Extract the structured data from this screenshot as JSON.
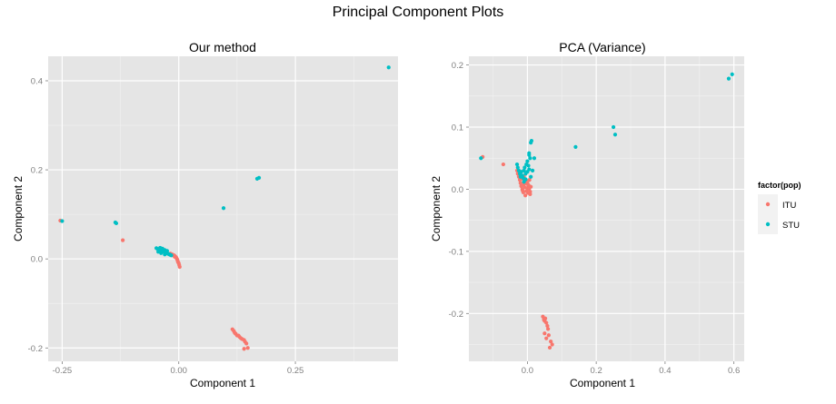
{
  "title": "Principal Component Plots",
  "colors": {
    "ITU": "#F8766D",
    "STU": "#00BFC4",
    "panel_bg": "#E5E5E5",
    "grid": "#FFFFFF"
  },
  "legend": {
    "title": "factor(pop)",
    "entries": [
      {
        "label": "ITU",
        "color": "#F8766D"
      },
      {
        "label": "STU",
        "color": "#00BFC4"
      }
    ]
  },
  "chart_data": [
    {
      "type": "scatter",
      "title": "Our method",
      "xlabel": "Component 1",
      "ylabel": "Component 2",
      "xlim": [
        -0.28,
        0.47
      ],
      "ylim": [
        -0.23,
        0.455
      ],
      "xticks": [
        -0.25,
        0.0,
        0.25
      ],
      "xtick_labels": [
        "-0.25",
        "0.00",
        "0.25"
      ],
      "yticks": [
        -0.2,
        0.0,
        0.2,
        0.4
      ],
      "ytick_labels": [
        "-0.2",
        "0.0",
        "0.2",
        "0.4"
      ],
      "grid": true,
      "series": [
        {
          "name": "ITU",
          "x": [
            -0.254,
            -0.12,
            -0.018,
            -0.014,
            -0.01,
            -0.008,
            -0.006,
            -0.004,
            -0.003,
            -0.002,
            -0.001,
            0.0,
            0.001,
            0.002,
            -0.005,
            -0.009,
            0.115,
            0.118,
            0.12,
            0.122,
            0.125,
            0.128,
            0.13,
            0.133,
            0.136,
            0.14,
            0.142,
            0.145,
            0.148,
            0.14
          ],
          "y": [
            0.086,
            0.042,
            0.012,
            0.01,
            0.008,
            0.006,
            0.004,
            0.0,
            -0.002,
            -0.006,
            -0.008,
            -0.01,
            -0.014,
            -0.018,
            0.002,
            0.005,
            -0.158,
            -0.162,
            -0.166,
            -0.168,
            -0.172,
            -0.172,
            -0.175,
            -0.178,
            -0.18,
            -0.182,
            -0.186,
            -0.19,
            -0.2,
            -0.202
          ]
        },
        {
          "name": "STU",
          "x": [
            -0.25,
            -0.136,
            -0.134,
            -0.048,
            -0.045,
            -0.043,
            -0.04,
            -0.038,
            -0.036,
            -0.034,
            -0.032,
            -0.03,
            -0.028,
            -0.026,
            -0.024,
            -0.022,
            -0.02,
            -0.018,
            -0.016,
            -0.044,
            -0.04,
            -0.035,
            -0.03,
            -0.025,
            -0.038,
            -0.03,
            0.096,
            0.168,
            0.172,
            0.45
          ],
          "y": [
            0.085,
            0.082,
            0.08,
            0.024,
            0.022,
            0.021,
            0.02,
            0.019,
            0.018,
            0.017,
            0.016,
            0.015,
            0.014,
            0.013,
            0.012,
            0.011,
            0.01,
            0.009,
            0.008,
            0.016,
            0.025,
            0.023,
            0.02,
            0.018,
            0.013,
            0.01,
            0.114,
            0.18,
            0.182,
            0.43
          ]
        }
      ]
    },
    {
      "type": "scatter",
      "title": "PCA (Variance)",
      "xlabel": "Component 1",
      "ylabel": "Component 2",
      "xlim": [
        -0.17,
        0.63
      ],
      "ylim": [
        -0.277,
        0.214
      ],
      "xticks": [
        0.0,
        0.2,
        0.4,
        0.6
      ],
      "xtick_labels": [
        "0.0",
        "0.2",
        "0.4",
        "0.6"
      ],
      "yticks": [
        -0.2,
        -0.1,
        0.0,
        0.1,
        0.2
      ],
      "ytick_labels": [
        "-0.2",
        "-0.1",
        "0.0",
        "0.1",
        "0.2"
      ],
      "grid": true,
      "series": [
        {
          "name": "ITU",
          "x": [
            -0.13,
            -0.07,
            -0.03,
            -0.028,
            -0.025,
            -0.022,
            -0.02,
            -0.018,
            -0.015,
            -0.012,
            -0.01,
            -0.008,
            -0.005,
            -0.003,
            0.0,
            0.002,
            0.005,
            0.008,
            0.01,
            -0.02,
            -0.016,
            -0.012,
            -0.008,
            -0.004,
            0.0,
            0.004,
            0.008,
            -0.014,
            -0.006,
            0.002,
            -0.01,
            0.006,
            0.045,
            0.048,
            0.05,
            0.052,
            0.055,
            0.058,
            0.06,
            0.05,
            0.055,
            0.062,
            0.068,
            0.072,
            0.065
          ],
          "y": [
            0.052,
            0.04,
            0.03,
            0.025,
            0.02,
            0.015,
            0.01,
            0.005,
            0.0,
            -0.005,
            0.008,
            0.003,
            0.012,
            -0.003,
            0.002,
            0.007,
            0.0,
            -0.004,
            0.004,
            0.018,
            0.022,
            0.016,
            0.009,
            0.014,
            0.01,
            0.006,
            -0.008,
            -0.002,
            -0.01,
            -0.006,
            0.02,
            0.015,
            -0.205,
            -0.21,
            -0.212,
            -0.208,
            -0.215,
            -0.22,
            -0.225,
            -0.232,
            -0.24,
            -0.235,
            -0.245,
            -0.25,
            -0.255
          ]
        },
        {
          "name": "STU",
          "x": [
            -0.135,
            -0.03,
            -0.028,
            -0.025,
            -0.022,
            -0.02,
            -0.018,
            -0.015,
            -0.012,
            -0.01,
            -0.008,
            -0.005,
            -0.003,
            0.0,
            0.003,
            0.005,
            0.008,
            0.01,
            0.012,
            0.015,
            0.0,
            0.005,
            0.01,
            -0.01,
            -0.005,
            0.02,
            0.005,
            0.14,
            0.25,
            0.255,
            0.585,
            0.595
          ],
          "y": [
            0.05,
            0.04,
            0.035,
            0.03,
            0.025,
            0.02,
            0.028,
            0.022,
            0.018,
            0.03,
            0.035,
            0.025,
            0.04,
            0.045,
            0.038,
            0.058,
            0.05,
            0.075,
            0.078,
            0.03,
            0.028,
            0.032,
            0.02,
            0.012,
            0.016,
            0.05,
            0.055,
            0.068,
            0.1,
            0.088,
            0.178,
            0.185
          ]
        }
      ]
    }
  ]
}
